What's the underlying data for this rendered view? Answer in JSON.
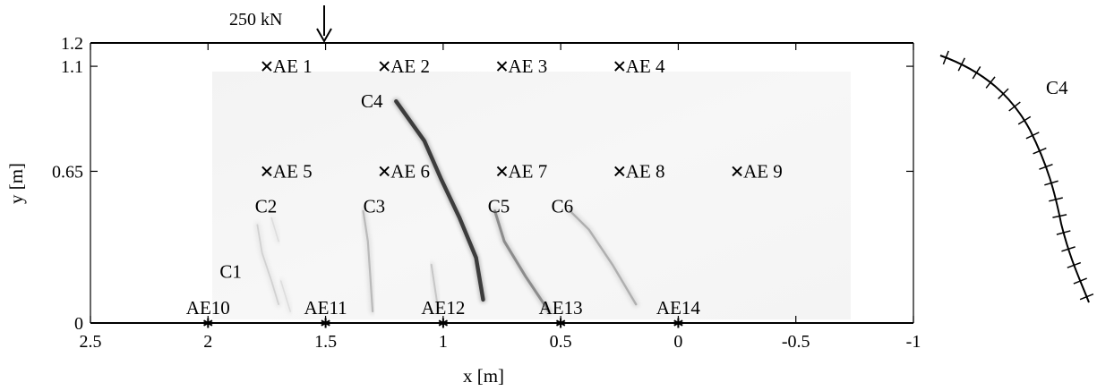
{
  "load": {
    "label": "250 kN",
    "x": 1.5,
    "y": 1.2
  },
  "chart_data": {
    "type": "scatter",
    "xlabel": "x [m]",
    "ylabel": "y [m]",
    "xlim": [
      2.5,
      -1
    ],
    "ylim": [
      0,
      1.2
    ],
    "xticks": [
      {
        "value": 2.5,
        "label": "2.5"
      },
      {
        "value": 2,
        "label": "2"
      },
      {
        "value": 1.5,
        "label": "1.5"
      },
      {
        "value": 1,
        "label": "1"
      },
      {
        "value": 0.5,
        "label": "0.5"
      },
      {
        "value": 0,
        "label": "0"
      },
      {
        "value": -0.5,
        "label": "-0.5"
      },
      {
        "value": -1,
        "label": "-1"
      }
    ],
    "yticks": [
      {
        "value": 0,
        "label": "0"
      },
      {
        "value": 0.65,
        "label": "0.65"
      },
      {
        "value": 1.1,
        "label": "1.1"
      },
      {
        "value": 1.2,
        "label": "1.2"
      }
    ],
    "sensors": [
      {
        "name": "AE 1",
        "x": 1.75,
        "y": 1.1,
        "marker": "x"
      },
      {
        "name": "AE 2",
        "x": 1.25,
        "y": 1.1,
        "marker": "x"
      },
      {
        "name": "AE 3",
        "x": 0.75,
        "y": 1.1,
        "marker": "x"
      },
      {
        "name": "AE 4",
        "x": 0.25,
        "y": 1.1,
        "marker": "x"
      },
      {
        "name": "AE 5",
        "x": 1.75,
        "y": 0.65,
        "marker": "x"
      },
      {
        "name": "AE 6",
        "x": 1.25,
        "y": 0.65,
        "marker": "x"
      },
      {
        "name": "AE 7",
        "x": 0.75,
        "y": 0.65,
        "marker": "x"
      },
      {
        "name": "AE 8",
        "x": 0.25,
        "y": 0.65,
        "marker": "x"
      },
      {
        "name": "AE 9",
        "x": -0.25,
        "y": 0.65,
        "marker": "x"
      },
      {
        "name": "AE10",
        "x": 2.0,
        "y": 0,
        "marker": "asterisk"
      },
      {
        "name": "AE11",
        "x": 1.5,
        "y": 0,
        "marker": "asterisk"
      },
      {
        "name": "AE12",
        "x": 1.0,
        "y": 0,
        "marker": "asterisk"
      },
      {
        "name": "AE13",
        "x": 0.5,
        "y": 0,
        "marker": "asterisk"
      },
      {
        "name": "AE14",
        "x": 0.0,
        "y": 0,
        "marker": "asterisk"
      }
    ],
    "cracks": [
      {
        "name": "C1",
        "points": [
          [
            1.7,
            0.08
          ],
          [
            1.73,
            0.18
          ],
          [
            1.77,
            0.3
          ],
          [
            1.79,
            0.42
          ]
        ],
        "intensity": 0.2
      },
      {
        "name": "C2",
        "points": [
          [
            1.7,
            0.35
          ],
          [
            1.73,
            0.45
          ]
        ],
        "intensity": 0.15
      },
      {
        "name": "C3",
        "points": [
          [
            1.3,
            0.05
          ],
          [
            1.31,
            0.2
          ],
          [
            1.32,
            0.35
          ],
          [
            1.34,
            0.48
          ]
        ],
        "intensity": 0.3
      },
      {
        "name": "C4",
        "points": [
          [
            0.83,
            0.1
          ],
          [
            0.86,
            0.28
          ],
          [
            0.93,
            0.45
          ],
          [
            1.01,
            0.62
          ],
          [
            1.08,
            0.78
          ],
          [
            1.2,
            0.95
          ]
        ],
        "intensity": 0.85
      },
      {
        "name": "C5",
        "points": [
          [
            0.55,
            0.05
          ],
          [
            0.65,
            0.2
          ],
          [
            0.74,
            0.35
          ],
          [
            0.78,
            0.48
          ]
        ],
        "intensity": 0.5
      },
      {
        "name": "C6",
        "points": [
          [
            0.18,
            0.08
          ],
          [
            0.28,
            0.25
          ],
          [
            0.38,
            0.4
          ],
          [
            0.46,
            0.48
          ]
        ],
        "intensity": 0.35
      },
      {
        "name": "",
        "points": [
          [
            1.02,
            0.05
          ],
          [
            1.05,
            0.25
          ]
        ],
        "intensity": 0.25
      },
      {
        "name": "",
        "points": [
          [
            1.65,
            0.05
          ],
          [
            1.69,
            0.18
          ]
        ],
        "intensity": 0.15
      }
    ],
    "crack_labels": [
      {
        "name": "C1",
        "x": 1.95,
        "y": 0.22
      },
      {
        "name": "C2",
        "x": 1.8,
        "y": 0.5
      },
      {
        "name": "C3",
        "x": 1.34,
        "y": 0.5
      },
      {
        "name": "C4",
        "x": 1.35,
        "y": 0.95
      },
      {
        "name": "C5",
        "x": 0.81,
        "y": 0.5
      },
      {
        "name": "C6",
        "x": 0.54,
        "y": 0.5
      }
    ],
    "inset": {
      "label": "C4",
      "ticks": 18
    }
  }
}
